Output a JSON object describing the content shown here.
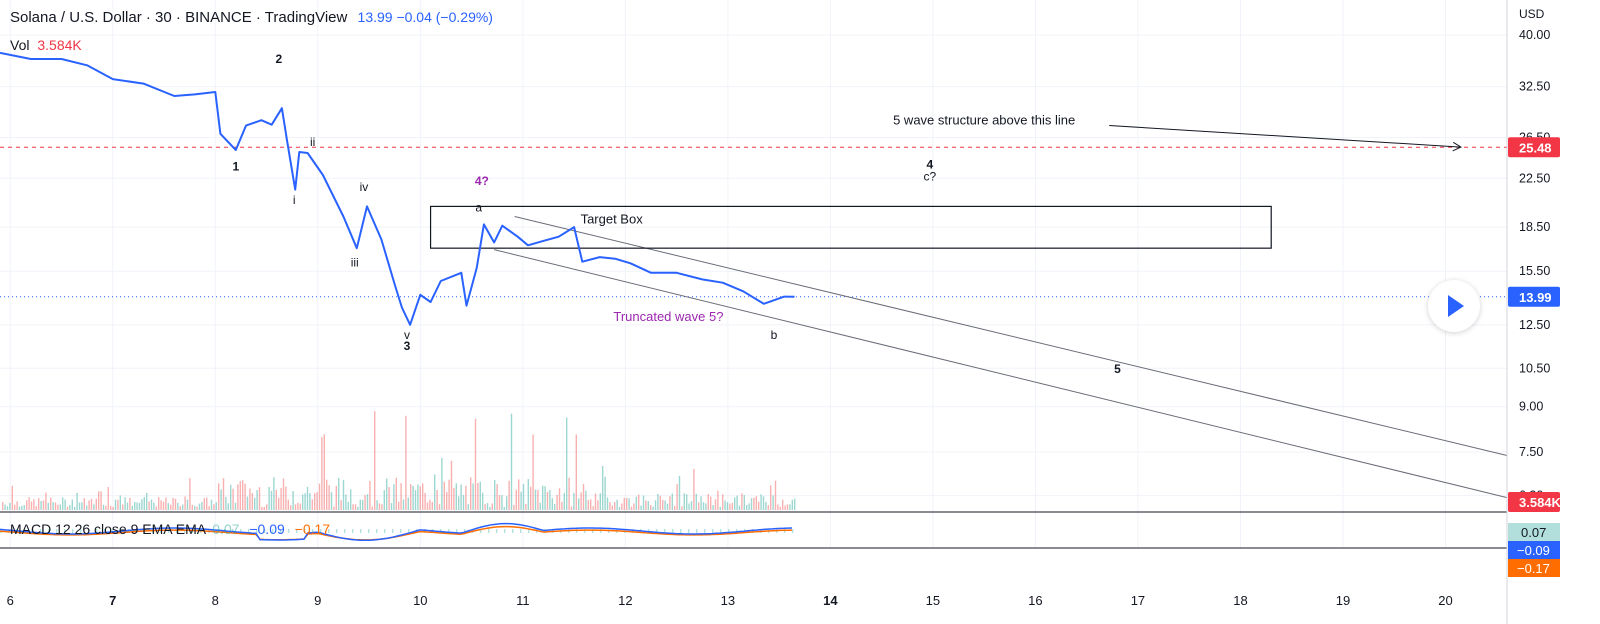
{
  "header": {
    "symbol_line": "Solana / U.S. Dollar · 30 · BINANCE · TradingView",
    "quote": "13.99 −0.04 (−0.29%)",
    "vol_label": "Vol",
    "vol_value": "3.584K"
  },
  "macd_legend": {
    "label": "MACD 12 26 close 9 EMA EMA",
    "histogram": "0.07",
    "macd": "−0.09",
    "signal": "−0.17"
  },
  "colors": {
    "price_line": "#2962ff",
    "macd_line": "#2962ff",
    "signal_line": "#ff6d00",
    "volume_up": "#26a69a",
    "volume_down": "#ef5350",
    "dashed_level": "#f23645",
    "annotation_purple": "#9c27b0",
    "grid": "#f0f3fa"
  },
  "icons": {
    "play": "play-icon"
  },
  "chart_data": {
    "type": "line",
    "title": "Solana / U.S. Dollar · 30 · BINANCE · TradingView",
    "currency": "USD",
    "y_scale": "log",
    "x_tick_labels": [
      {
        "label": "6",
        "day": 6
      },
      {
        "label": "7",
        "day": 7
      },
      {
        "label": "8",
        "day": 8
      },
      {
        "label": "9",
        "day": 9
      },
      {
        "label": "10",
        "day": 10
      },
      {
        "label": "11",
        "day": 11
      },
      {
        "label": "12",
        "day": 12
      },
      {
        "label": "13",
        "day": 13
      },
      {
        "label": "14",
        "day": 14
      },
      {
        "label": "15",
        "day": 15
      },
      {
        "label": "16",
        "day": 16
      },
      {
        "label": "17",
        "day": 17
      },
      {
        "label": "18",
        "day": 18
      },
      {
        "label": "19",
        "day": 19
      },
      {
        "label": "20",
        "day": 20
      }
    ],
    "y_tick_labels": [
      {
        "label": "40.00",
        "value": 40
      },
      {
        "label": "32.50",
        "value": 32.5
      },
      {
        "label": "26.50",
        "value": 26.5
      },
      {
        "label": "22.50",
        "value": 22.5
      },
      {
        "label": "18.50",
        "value": 18.5
      },
      {
        "label": "15.50",
        "value": 15.5
      },
      {
        "label": "12.50",
        "value": 12.5
      },
      {
        "label": "10.50",
        "value": 10.5
      },
      {
        "label": "9.00",
        "value": 9
      },
      {
        "label": "7.50",
        "value": 7.5
      },
      {
        "label": "6.30",
        "value": 6.3
      }
    ],
    "y_range": [
      5.9,
      46
    ],
    "x_range": [
      5.9,
      20.6
    ],
    "price_series": {
      "name": "SOLUSD",
      "points": [
        [
          5.9,
          37.2
        ],
        [
          6.2,
          36.3
        ],
        [
          6.5,
          36.3
        ],
        [
          6.75,
          35.4
        ],
        [
          7.0,
          33.5
        ],
        [
          7.3,
          32.9
        ],
        [
          7.6,
          31.3
        ],
        [
          7.8,
          31.5
        ],
        [
          8.0,
          31.8
        ],
        [
          8.05,
          26.9
        ],
        [
          8.2,
          25.2
        ],
        [
          8.3,
          27.8
        ],
        [
          8.45,
          28.4
        ],
        [
          8.55,
          27.9
        ],
        [
          8.65,
          29.8
        ],
        [
          8.7,
          26.2
        ],
        [
          8.78,
          21.5
        ],
        [
          8.82,
          25.0
        ],
        [
          8.9,
          24.9
        ],
        [
          9.05,
          22.8
        ],
        [
          9.25,
          19.3
        ],
        [
          9.38,
          17.0
        ],
        [
          9.48,
          20.1
        ],
        [
          9.62,
          17.6
        ],
        [
          9.75,
          14.7
        ],
        [
          9.82,
          13.4
        ],
        [
          9.9,
          12.5
        ],
        [
          10.0,
          14.1
        ],
        [
          10.1,
          13.7
        ],
        [
          10.2,
          14.9
        ],
        [
          10.4,
          15.4
        ],
        [
          10.45,
          13.5
        ],
        [
          10.55,
          15.7
        ],
        [
          10.62,
          18.7
        ],
        [
          10.72,
          17.4
        ],
        [
          10.8,
          18.6
        ],
        [
          10.95,
          17.8
        ],
        [
          11.05,
          17.2
        ],
        [
          11.2,
          17.5
        ],
        [
          11.35,
          17.8
        ],
        [
          11.5,
          18.5
        ],
        [
          11.58,
          16.1
        ],
        [
          11.75,
          16.4
        ],
        [
          11.9,
          16.3
        ],
        [
          12.05,
          16.0
        ],
        [
          12.25,
          15.4
        ],
        [
          12.5,
          15.4
        ],
        [
          12.75,
          15.0
        ],
        [
          12.95,
          14.8
        ],
        [
          13.15,
          14.3
        ],
        [
          13.35,
          13.6
        ],
        [
          13.55,
          14.0
        ],
        [
          13.65,
          13.99
        ]
      ]
    },
    "current_price_label": "13.99",
    "dashed_level": {
      "value": 25.48,
      "label": "25.48"
    },
    "target_box": {
      "label": "Target Box",
      "x_from": 10.1,
      "x_to": 18.3,
      "y_low": 17.0,
      "y_high": 20.1
    },
    "channel_upper": {
      "from": [
        10.92,
        19.3
      ],
      "to": [
        20.6,
        7.4
      ]
    },
    "channel_lower": {
      "from": [
        10.72,
        16.9
      ],
      "to": [
        20.6,
        6.25
      ]
    },
    "arrow": {
      "from": [
        16.72,
        27.8
      ],
      "to": [
        20.15,
        25.5
      ]
    },
    "annotations": [
      {
        "text": "1",
        "x": 8.2,
        "y": 23.2,
        "color": "black"
      },
      {
        "text": "2",
        "x": 8.62,
        "y": 35.7,
        "color": "black"
      },
      {
        "text": "ii",
        "x": 8.95,
        "y": 25.6,
        "color": "black"
      },
      {
        "text": "i",
        "x": 8.77,
        "y": 20.3,
        "color": "black"
      },
      {
        "text": "iv",
        "x": 9.45,
        "y": 21.4,
        "color": "black"
      },
      {
        "text": "iii",
        "x": 9.36,
        "y": 15.8,
        "color": "black"
      },
      {
        "text": "v",
        "x": 9.87,
        "y": 11.8,
        "color": "black"
      },
      {
        "text": "3",
        "x": 9.87,
        "y": 11.3,
        "color": "black"
      },
      {
        "text": "4?",
        "x": 10.6,
        "y": 21.9,
        "color": "purple"
      },
      {
        "text": "a",
        "x": 10.57,
        "y": 19.7,
        "color": "black"
      },
      {
        "text": "Truncated wave 5?",
        "x": 12.42,
        "y": 12.7,
        "color": "purple"
      },
      {
        "text": "b",
        "x": 13.45,
        "y": 11.8,
        "color": "black"
      },
      {
        "text": "5 wave structure above this line",
        "x": 15.5,
        "y": 27.9,
        "color": "black"
      },
      {
        "text": "4",
        "x": 14.97,
        "y": 23.4,
        "color": "black"
      },
      {
        "text": "c?",
        "x": 14.97,
        "y": 22.3,
        "color": "black"
      },
      {
        "text": "5",
        "x": 16.8,
        "y": 10.3,
        "color": "black"
      }
    ],
    "volume": {
      "label": "Vol",
      "current_label": "3.584K"
    },
    "macd": {
      "label": "MACD 12 26 close 9 EMA EMA",
      "histogram_label": "0.07",
      "macd_label": "−0.09",
      "signal_label": "−0.17"
    }
  }
}
